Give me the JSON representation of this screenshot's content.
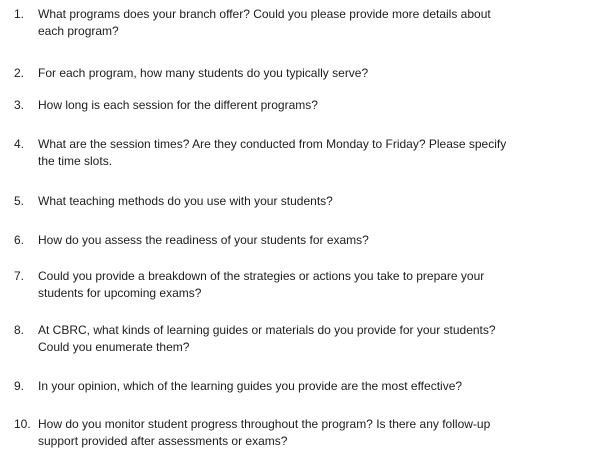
{
  "questions": [
    {
      "number": "1.",
      "text": "What programs does your branch offer? Could you please provide more details about\neach program?"
    },
    {
      "number": "2.",
      "text": "For each program, how many students do you typically serve?"
    },
    {
      "number": "3.",
      "text": "How long is each session for the different programs?"
    },
    {
      "number": "4.",
      "text": "What are the session times? Are they conducted from Monday to Friday? Please specify\nthe time slots."
    },
    {
      "number": "5.",
      "text": "What teaching methods do you use with your students?"
    },
    {
      "number": "6.",
      "text": "How do you assess the readiness of your students for exams?"
    },
    {
      "number": "7.",
      "text": "Could you provide a breakdown of the strategies or actions you take to prepare your\nstudents for upcoming exams?"
    },
    {
      "number": "8.",
      "text": "At CBRC, what kinds of learning guides or materials do you provide for your students?\nCould you enumerate them?"
    },
    {
      "number": "9.",
      "text": "In your opinion, which of the learning guides you provide are the most effective?"
    },
    {
      "number": "10.",
      "text": "How do you monitor student progress throughout the program? Is there any follow-up\nsupport provided after assessments or exams?"
    }
  ]
}
